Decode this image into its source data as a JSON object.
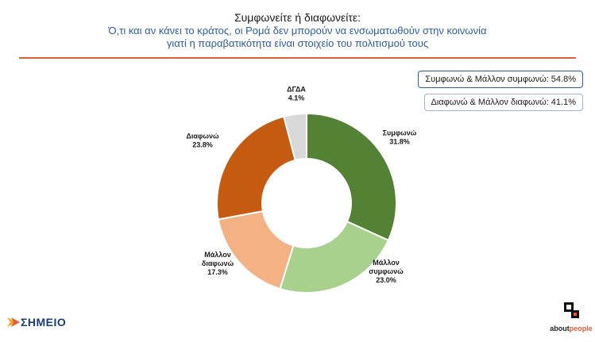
{
  "header": {
    "title": "Συμφωνείτε ή διαφωνείτε:",
    "subtitle_line1": "Ό,τι και αν κάνει το κράτος, οι Ρομά δεν μπορούν να ενσωματωθούν στην κοινωνία",
    "subtitle_line2": "γιατί η παραβατικότητα είναι στοιχείο του πολιτισμού τους"
  },
  "summary": {
    "agree": "Συμφωνώ & Μάλλον συμφωνώ: 54.8%",
    "disagree": "Διαφωνώ & Μάλλον διαφωνώ: 41.1%"
  },
  "logos": {
    "left": "ΣΗΜΕΙΟ",
    "right_part1": "about",
    "right_part2": "people"
  },
  "chart_data": {
    "type": "pie",
    "donut": true,
    "legend": "none",
    "slices": [
      {
        "label_lines": [
          "Συμφωνώ"
        ],
        "value": 31.8,
        "value_label": "31.8%",
        "color": "#548235"
      },
      {
        "label_lines": [
          "Μάλλον",
          "συμφωνώ"
        ],
        "value": 23.0,
        "value_label": "23.0%",
        "color": "#a9d18e"
      },
      {
        "label_lines": [
          "Μάλλον",
          "διαφωνώ"
        ],
        "value": 17.3,
        "value_label": "17.3%",
        "color": "#f4b183"
      },
      {
        "label_lines": [
          "Διαφωνώ"
        ],
        "value": 23.8,
        "value_label": "23.8%",
        "color": "#c55a11"
      },
      {
        "label_lines": [
          "ΔΓΔΑ"
        ],
        "value": 4.1,
        "value_label": "4.1%",
        "color": "#d9d9d9"
      }
    ]
  }
}
